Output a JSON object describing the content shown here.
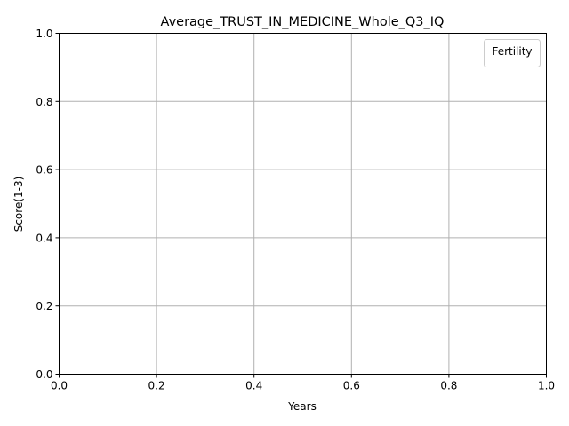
{
  "chart_data": {
    "type": "line",
    "title": "Average_TRUST_IN_MEDICINE_Whole_Q3_IQ",
    "xlabel": "Years",
    "ylabel": "Score(1-3)",
    "xlim": [
      0.0,
      1.0
    ],
    "ylim": [
      0.0,
      1.0
    ],
    "xticks": [
      "0.0",
      "0.2",
      "0.4",
      "0.6",
      "0.8",
      "1.0"
    ],
    "yticks": [
      "0.0",
      "0.2",
      "0.4",
      "0.6",
      "0.8",
      "1.0"
    ],
    "grid": true,
    "legend": {
      "title": "Fertility",
      "placement": "top-right",
      "entries": []
    },
    "series": [],
    "colors": {
      "axis": "#000000",
      "grid": "#b0b0b0",
      "legend_border": "#cccccc"
    }
  }
}
